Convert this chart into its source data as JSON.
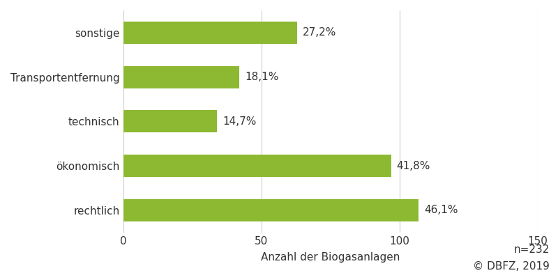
{
  "categories": [
    "rechtlich",
    "ökonomisch",
    "technisch",
    "Transportentfernung",
    "sonstige"
  ],
  "values": [
    107,
    97,
    34,
    42,
    63
  ],
  "labels": [
    "46,1%",
    "41,8%",
    "14,7%",
    "18,1%",
    "27,2%"
  ],
  "bar_color": "#8db832",
  "xlabel": "Anzahl der Biogasanlagen",
  "xlim": [
    0,
    150
  ],
  "xticks": [
    0,
    50,
    100,
    150
  ],
  "note": "n=232",
  "source": "© DBFZ, 2019",
  "background_color": "#ffffff",
  "label_fontsize": 11,
  "tick_fontsize": 11,
  "xlabel_fontsize": 11,
  "bar_height": 0.5
}
